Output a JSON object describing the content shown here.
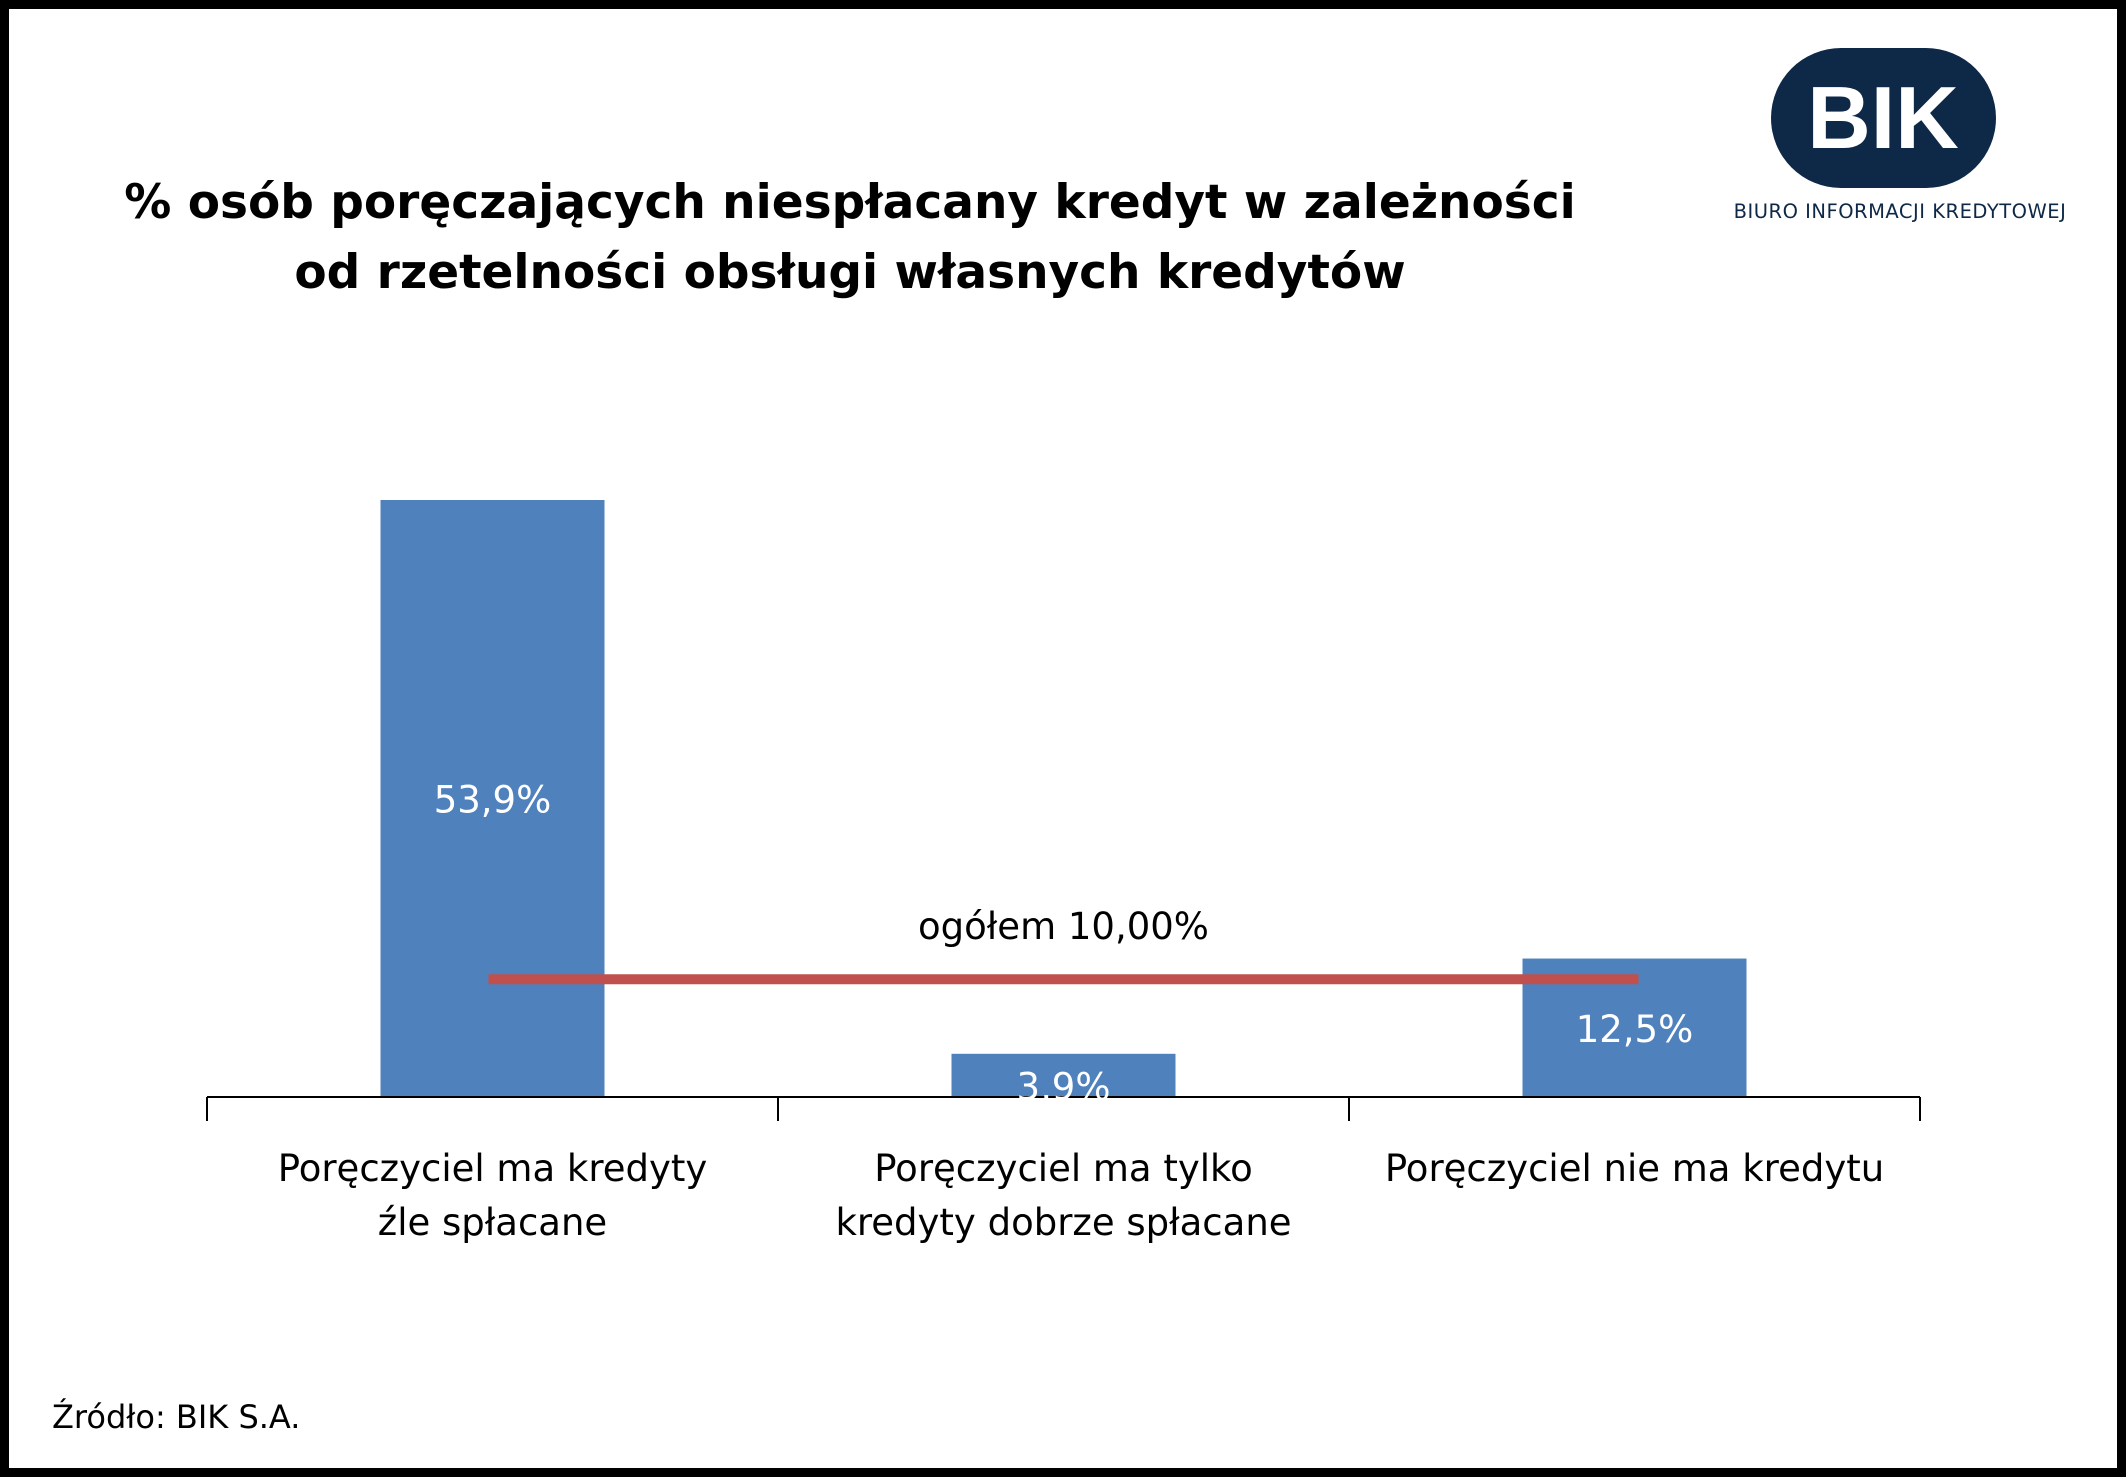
{
  "title_lines": [
    "% osób poręczających niespłacany kredyt w zależności",
    "od rzetelności obsługi własnych kredytów"
  ],
  "logo": {
    "mark": "BIK",
    "name": "BIURO INFORMACJI KREDYTOWEJ",
    "color": "#0e2847"
  },
  "source": "Źródło: BIK S.A.",
  "colors": {
    "bar": "#4f81bd",
    "reference_line": "#c0504d"
  },
  "chart_data": {
    "type": "bar",
    "categories": [
      [
        "Poręczyciel ma kredyty",
        "źle spłacane"
      ],
      [
        "Poręczyciel ma tylko",
        "kredyty dobrze spłacane"
      ],
      [
        "Poręczyciel nie ma kredytu"
      ]
    ],
    "values": [
      53.9,
      3.9,
      12.5
    ],
    "value_labels": [
      "53,9%",
      "3,9%",
      "12,5%"
    ],
    "reference_line": {
      "value": 10.0,
      "label": "ogółem 10,00%"
    },
    "ylim": [
      0,
      60
    ],
    "grid": false,
    "legend": "none"
  }
}
